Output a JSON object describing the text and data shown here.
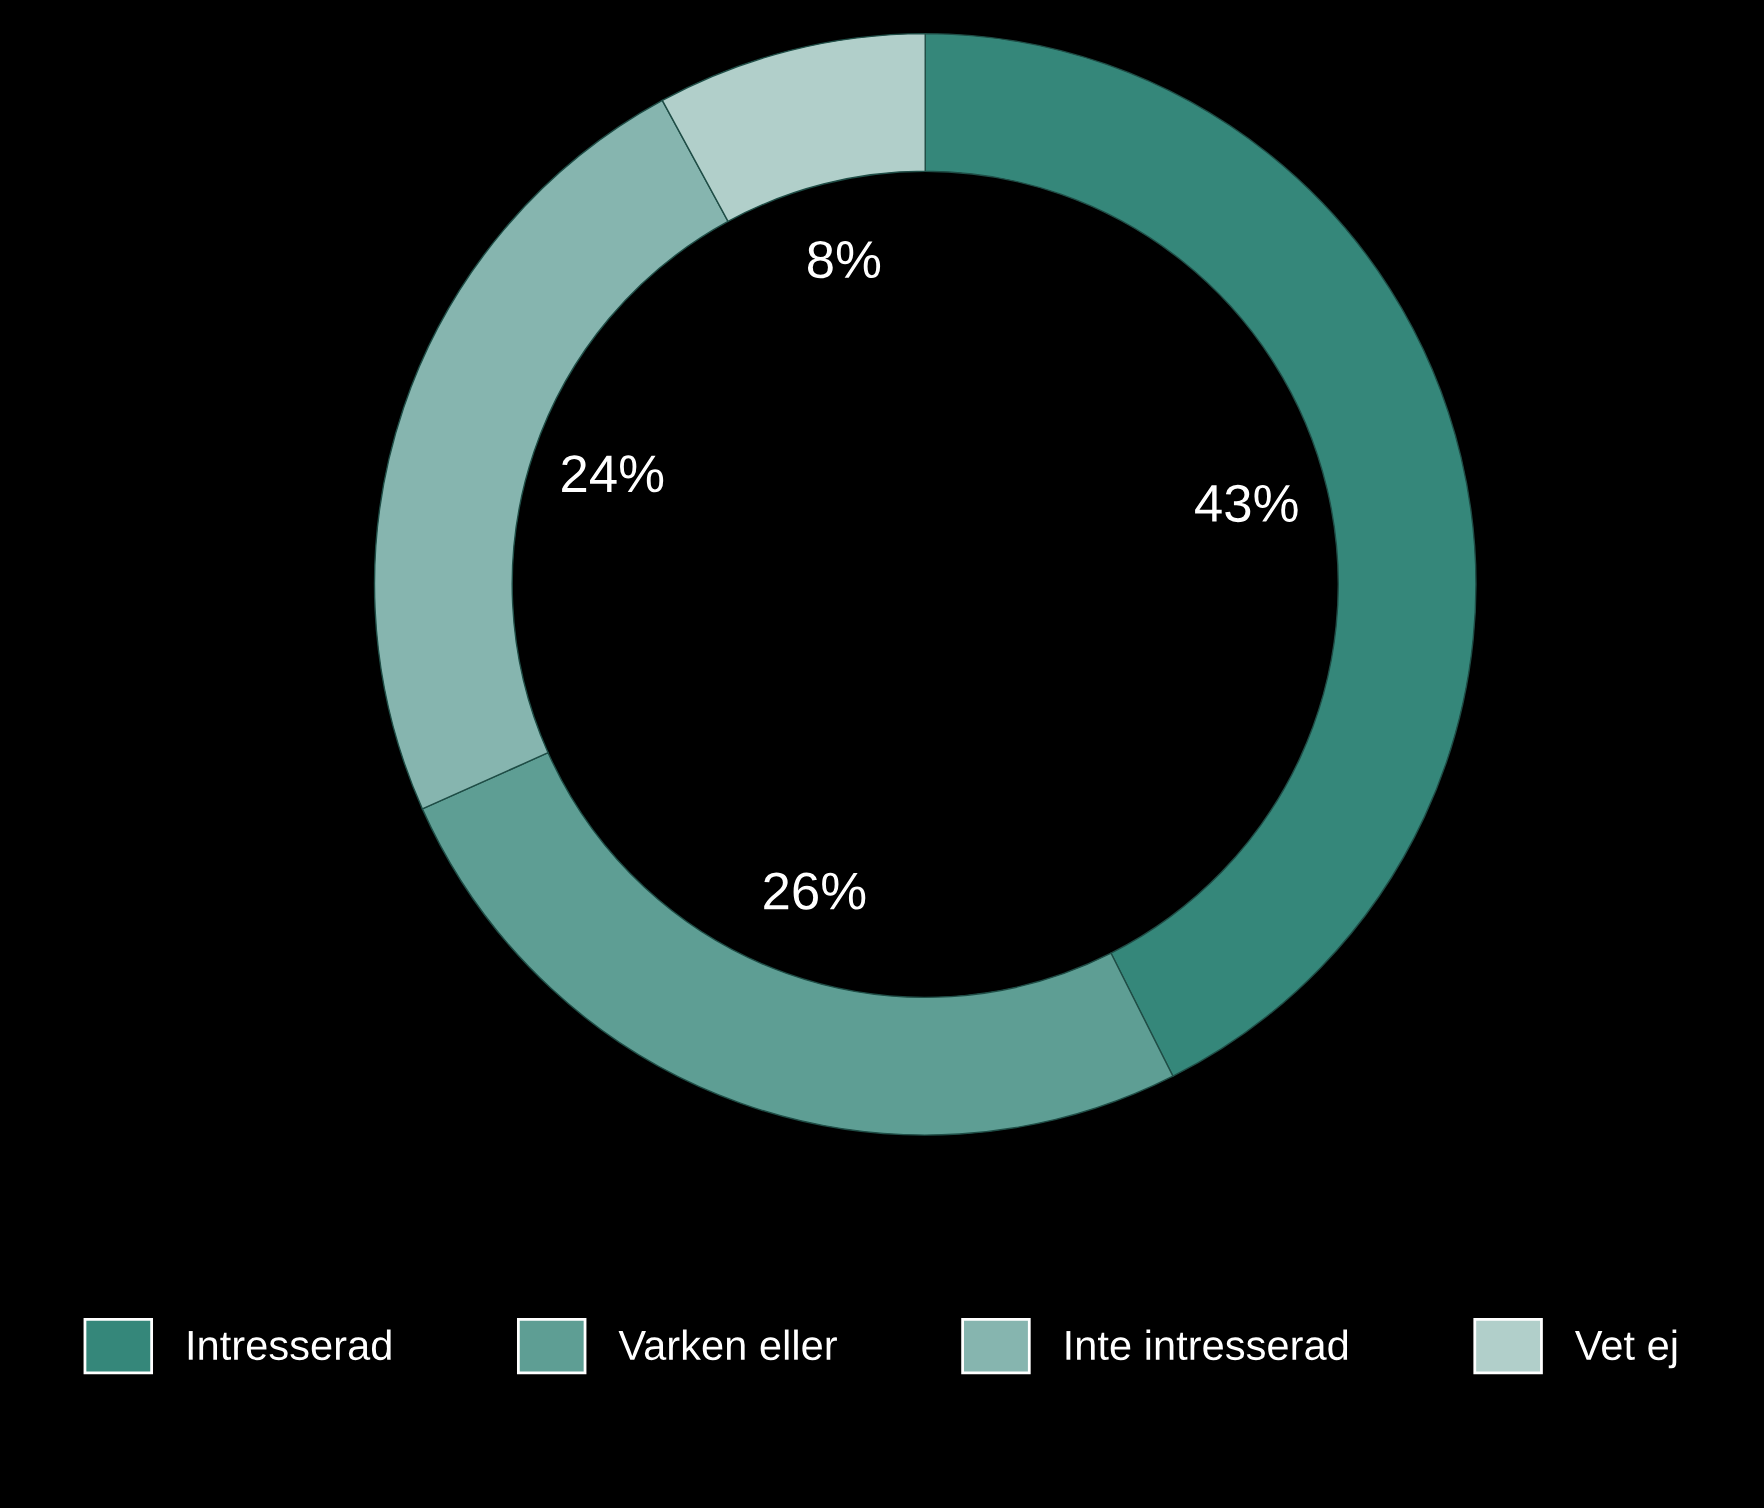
{
  "chart_data": {
    "type": "donut",
    "categories": [
      "Intresserad",
      "Varken eller",
      "Inte intresserad",
      "Vet ej"
    ],
    "values": [
      43,
      26,
      24,
      8
    ],
    "colors": [
      "#35877a",
      "#5e9e94",
      "#86b5af",
      "#b1cfca"
    ],
    "value_labels": [
      "43%",
      "26%",
      "24%",
      "8%"
    ],
    "legend": "bottom"
  }
}
